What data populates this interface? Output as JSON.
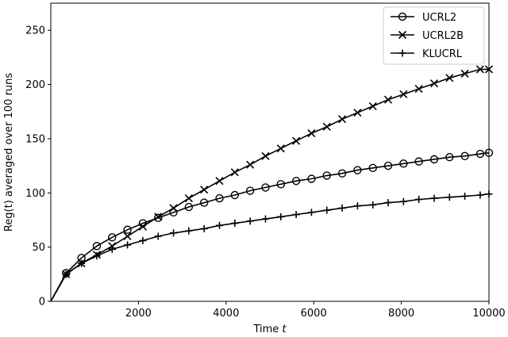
{
  "chart_data": {
    "type": "line",
    "title": "",
    "xlabel": "Time",
    "xlabel_var": "t",
    "ylabel": "Reg(t) averaged over 100 runs",
    "xlim": [
      0,
      10000
    ],
    "ylim": [
      0,
      275
    ],
    "xticks": [
      2000,
      4000,
      6000,
      8000,
      10000
    ],
    "yticks": [
      0,
      50,
      100,
      150,
      200,
      250
    ],
    "grid": false,
    "legend_position": "top-right",
    "x": [
      0,
      350,
      700,
      1050,
      1400,
      1750,
      2100,
      2450,
      2800,
      3150,
      3500,
      3850,
      4200,
      4550,
      4900,
      5250,
      5600,
      5950,
      6300,
      6650,
      7000,
      7350,
      7700,
      8050,
      8400,
      8750,
      9100,
      9450,
      9800,
      10000
    ],
    "series": [
      {
        "name": "UCRL2",
        "marker": "circle",
        "values": [
          0,
          26,
          40,
          51,
          59,
          66,
          72,
          77,
          82,
          87,
          91,
          95,
          98,
          102,
          105,
          108,
          111,
          113,
          116,
          118,
          121,
          123,
          125,
          127,
          129,
          131,
          133,
          134,
          136,
          137
        ]
      },
      {
        "name": "UCRL2B",
        "marker": "x",
        "values": [
          0,
          25,
          35,
          43,
          51,
          60,
          69,
          78,
          86,
          95,
          103,
          111,
          119,
          126,
          134,
          141,
          148,
          155,
          161,
          168,
          174,
          180,
          186,
          191,
          196,
          201,
          206,
          210,
          214,
          214
        ]
      },
      {
        "name": "KLUCRL",
        "marker": "plus",
        "values": [
          0,
          25,
          35,
          42,
          48,
          52,
          56,
          60,
          63,
          65,
          67,
          70,
          72,
          74,
          76,
          78,
          80,
          82,
          84,
          86,
          88,
          89,
          91,
          92,
          94,
          95,
          96,
          97,
          98,
          99
        ]
      }
    ]
  }
}
